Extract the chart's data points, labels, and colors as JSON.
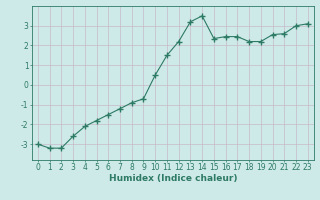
{
  "x": [
    0,
    1,
    2,
    3,
    4,
    5,
    6,
    7,
    8,
    9,
    10,
    11,
    12,
    13,
    14,
    15,
    16,
    17,
    18,
    19,
    20,
    21,
    22,
    23
  ],
  "y": [
    -3.0,
    -3.2,
    -3.2,
    -2.6,
    -2.1,
    -1.8,
    -1.5,
    -1.2,
    -0.9,
    -0.7,
    0.5,
    1.5,
    2.2,
    3.2,
    3.5,
    2.35,
    2.45,
    2.45,
    2.2,
    2.2,
    2.55,
    2.6,
    3.0,
    3.1
  ],
  "line_color": "#2d7a65",
  "marker": "+",
  "marker_size": 4,
  "bg_color": "#ceeae8",
  "grid_color": "#c8b8c8",
  "xlabel": "Humidex (Indice chaleur)",
  "xlim": [
    -0.5,
    23.5
  ],
  "ylim": [
    -3.8,
    4.0
  ],
  "yticks": [
    -3,
    -2,
    -1,
    0,
    1,
    2,
    3
  ],
  "xticks": [
    0,
    1,
    2,
    3,
    4,
    5,
    6,
    7,
    8,
    9,
    10,
    11,
    12,
    13,
    14,
    15,
    16,
    17,
    18,
    19,
    20,
    21,
    22,
    23
  ],
  "tick_color": "#2d7a65",
  "label_fontsize": 6.5,
  "tick_fontsize": 5.5,
  "linewidth": 0.8,
  "marker_linewidth": 1.0
}
